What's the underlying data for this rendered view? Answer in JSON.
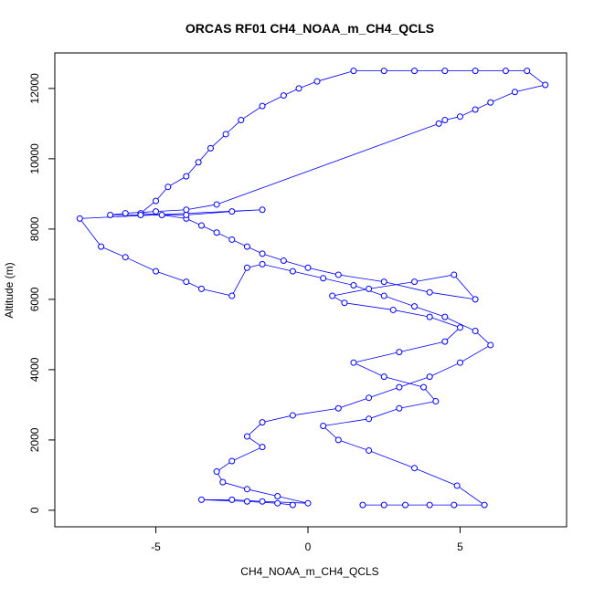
{
  "chart_data": {
    "type": "line",
    "title": "ORCAS RF01 CH4_NOAA_m_CH4_QCLS",
    "x_label": "CH4_NOAA_m_CH4_QCLS",
    "y_label": "Altitude (m)",
    "color": "#0000ff",
    "markers": true,
    "x": [
      1.8,
      2.5,
      3.2,
      4.0,
      4.8,
      5.8,
      4.9,
      3.5,
      2.0,
      1.0,
      0.5,
      2.0,
      3.0,
      4.2,
      3.8,
      2.5,
      1.5,
      3.0,
      4.5,
      5.0,
      4.0,
      2.8,
      1.2,
      0.8,
      2.0,
      3.5,
      4.8,
      5.5,
      4.0,
      2.5,
      1.0,
      0.0,
      -0.8,
      -1.5,
      -2.0,
      -2.5,
      -3.0,
      -3.5,
      -4.0,
      -4.8,
      -5.5,
      -5.0,
      -4.6,
      -4.0,
      -3.6,
      -3.2,
      -2.7,
      -2.2,
      -1.5,
      -0.8,
      -0.3,
      0.3,
      1.5,
      2.5,
      3.5,
      4.5,
      5.5,
      6.5,
      7.2,
      7.8,
      6.8,
      6.0,
      5.5,
      5.0,
      4.5,
      4.3,
      -3.0,
      -4.0,
      -5.0,
      -6.0,
      -6.5,
      -5.5,
      -4.0,
      -2.5,
      -1.5,
      -7.5,
      -6.8,
      -6.0,
      -5.0,
      -4.0,
      -3.5,
      -2.5,
      -2.0,
      -1.5,
      -0.5,
      0.5,
      1.5,
      2.5,
      3.5,
      4.5,
      5.5,
      6.0,
      5.0,
      4.0,
      3.0,
      2.0,
      1.0,
      -0.5,
      -1.5,
      -2.0,
      -1.5,
      -2.5,
      -3.0,
      -2.8,
      -2.0,
      -1.0,
      0.0,
      -1.5,
      -2.5,
      -3.5,
      -2.0,
      -1.0,
      -0.5
    ],
    "values": [
      150,
      150,
      150,
      150,
      150,
      150,
      700,
      1200,
      1700,
      2000,
      2400,
      2600,
      2900,
      3100,
      3500,
      3800,
      4200,
      4500,
      4800,
      5200,
      5500,
      5700,
      5900,
      6100,
      6300,
      6500,
      6700,
      6000,
      6200,
      6500,
      6700,
      6900,
      7100,
      7300,
      7500,
      7700,
      7900,
      8100,
      8300,
      8400,
      8450,
      8800,
      9200,
      9500,
      9900,
      10300,
      10700,
      11100,
      11500,
      11800,
      12000,
      12200,
      12500,
      12500,
      12500,
      12500,
      12500,
      12500,
      12500,
      12100,
      11900,
      11600,
      11400,
      11200,
      11100,
      11000,
      8700,
      8550,
      8500,
      8450,
      8400,
      8400,
      8400,
      8500,
      8550,
      8300,
      7500,
      7200,
      6800,
      6500,
      6300,
      6100,
      6900,
      7000,
      6800,
      6600,
      6400,
      6100,
      5800,
      5500,
      5100,
      4700,
      4200,
      3800,
      3500,
      3200,
      2900,
      2700,
      2500,
      2100,
      1800,
      1400,
      1100,
      800,
      600,
      400,
      200,
      250,
      300,
      300,
      250,
      200,
      150
    ],
    "xlim": [
      -8.32,
      8.5
    ],
    "ylim": [
      -470,
      13010
    ],
    "xticks": [
      -5,
      0,
      5
    ],
    "yticks": [
      0,
      2000,
      4000,
      6000,
      8000,
      10000,
      12000
    ]
  }
}
